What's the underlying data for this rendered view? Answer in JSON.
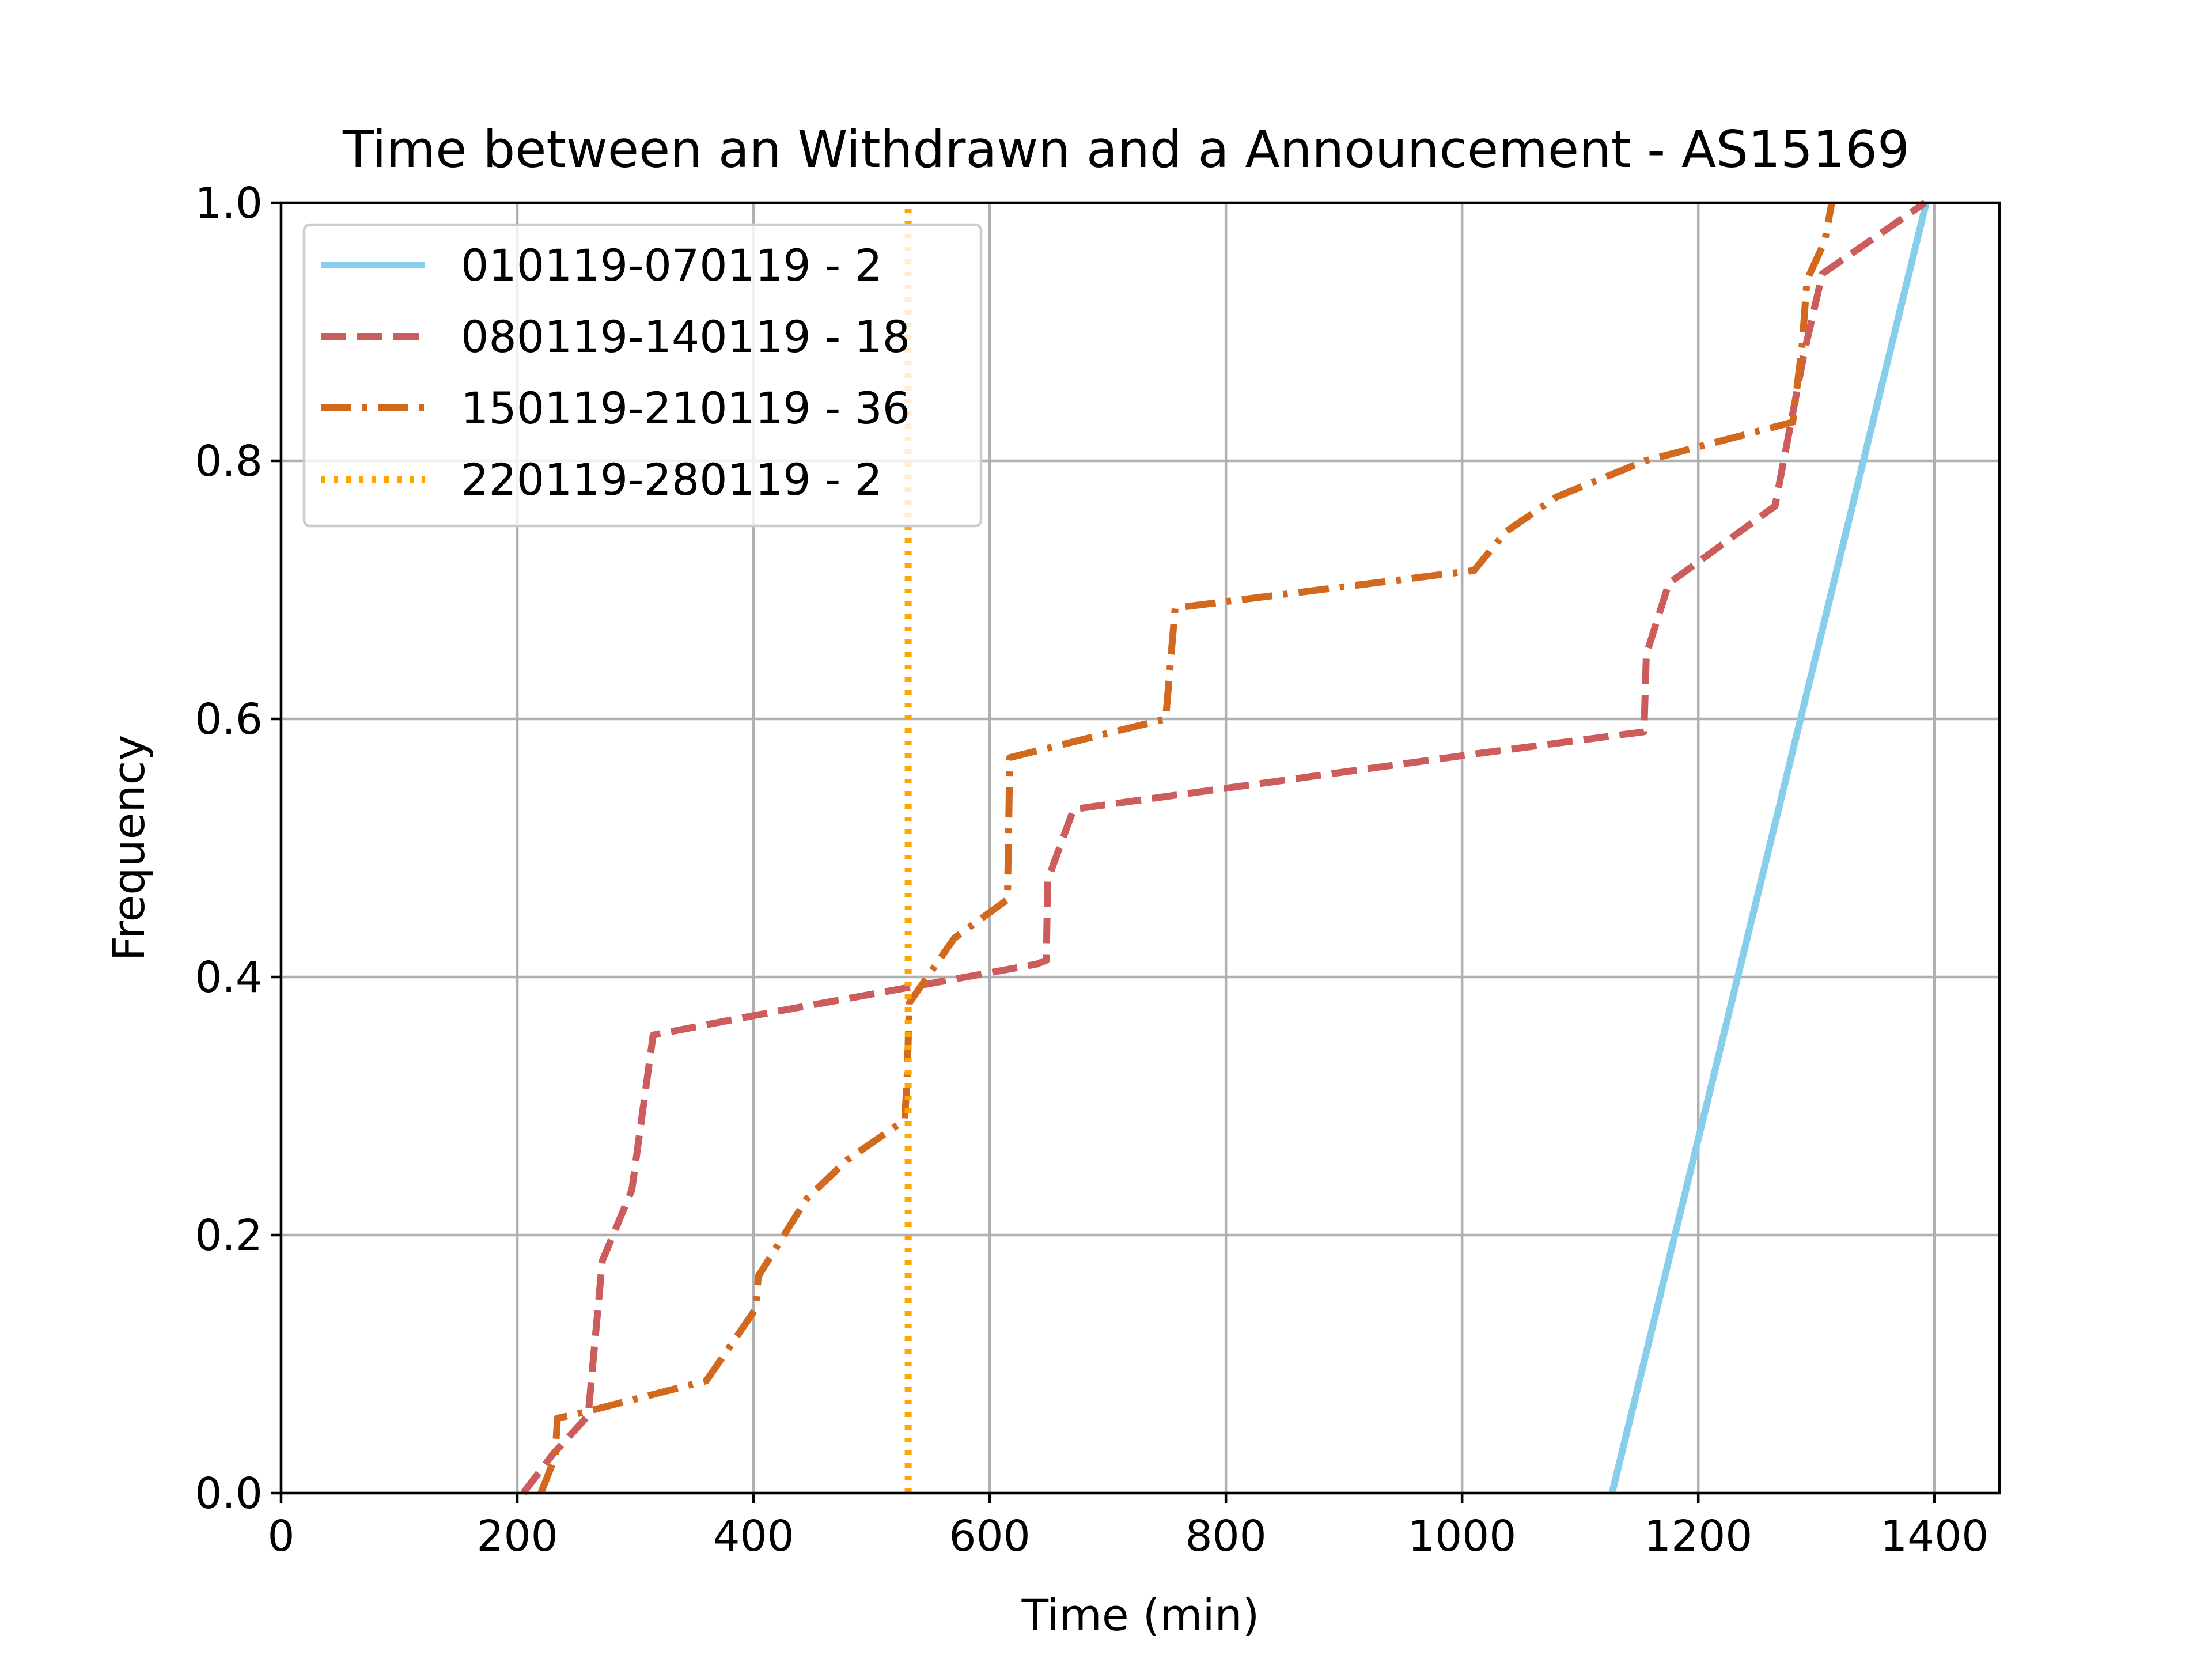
{
  "chart_data": {
    "type": "line",
    "title": "Time between an Withdrawn and a Announcement - AS15169",
    "xlabel": "Time (min)",
    "ylabel": "Frequency",
    "xlim": [
      0,
      1455
    ],
    "ylim": [
      0,
      1
    ],
    "xticks": [
      "0",
      "200",
      "400",
      "600",
      "800",
      "1000",
      "1200",
      "1400"
    ],
    "yticks": [
      "0.0",
      "0.2",
      "0.4",
      "0.6",
      "0.8",
      "1.0"
    ],
    "grid": true,
    "legend_position": "top-left",
    "series": [
      {
        "name": "010119-070119 - 2",
        "color": "#87ceeb",
        "style": "solid",
        "points": [
          [
            1127,
            0.0
          ],
          [
            1393,
            1.0
          ]
        ]
      },
      {
        "name": "080119-140119 - 18",
        "color": "#cd5c5c",
        "style": "dashed",
        "points": [
          [
            205,
            0.0
          ],
          [
            230,
            0.03
          ],
          [
            260,
            0.06
          ],
          [
            272,
            0.18
          ],
          [
            297,
            0.235
          ],
          [
            315,
            0.355
          ],
          [
            400,
            0.37
          ],
          [
            640,
            0.41
          ],
          [
            648,
            0.413
          ],
          [
            649,
            0.475
          ],
          [
            671,
            0.53
          ],
          [
            1012,
            0.573
          ],
          [
            1154,
            0.59
          ],
          [
            1156,
            0.65
          ],
          [
            1175,
            0.705
          ],
          [
            1265,
            0.765
          ],
          [
            1290,
            0.885
          ],
          [
            1305,
            0.945
          ],
          [
            1392,
            1.0
          ]
        ]
      },
      {
        "name": "150119-210119 - 36",
        "color": "#d2691e",
        "style": "dashdot",
        "points": [
          [
            220,
            0.0
          ],
          [
            232,
            0.028
          ],
          [
            234,
            0.058
          ],
          [
            258,
            0.063
          ],
          [
            360,
            0.087
          ],
          [
            402,
            0.143
          ],
          [
            404,
            0.168
          ],
          [
            445,
            0.228
          ],
          [
            479,
            0.258
          ],
          [
            528,
            0.289
          ],
          [
            530,
            0.32
          ],
          [
            532,
            0.38
          ],
          [
            570,
            0.43
          ],
          [
            615,
            0.46
          ],
          [
            617,
            0.57
          ],
          [
            749,
            0.6
          ],
          [
            757,
            0.686
          ],
          [
            1010,
            0.715
          ],
          [
            1037,
            0.745
          ],
          [
            1080,
            0.772
          ],
          [
            1155,
            0.8
          ],
          [
            1280,
            0.83
          ],
          [
            1288,
            0.89
          ],
          [
            1292,
            0.94
          ],
          [
            1307,
            0.97
          ],
          [
            1313,
            1.0
          ]
        ]
      },
      {
        "name": "220119-280119 - 2",
        "color": "#ffa500",
        "style": "dotted",
        "points": [
          [
            531,
            0.0
          ],
          [
            531,
            1.0
          ]
        ]
      }
    ]
  }
}
